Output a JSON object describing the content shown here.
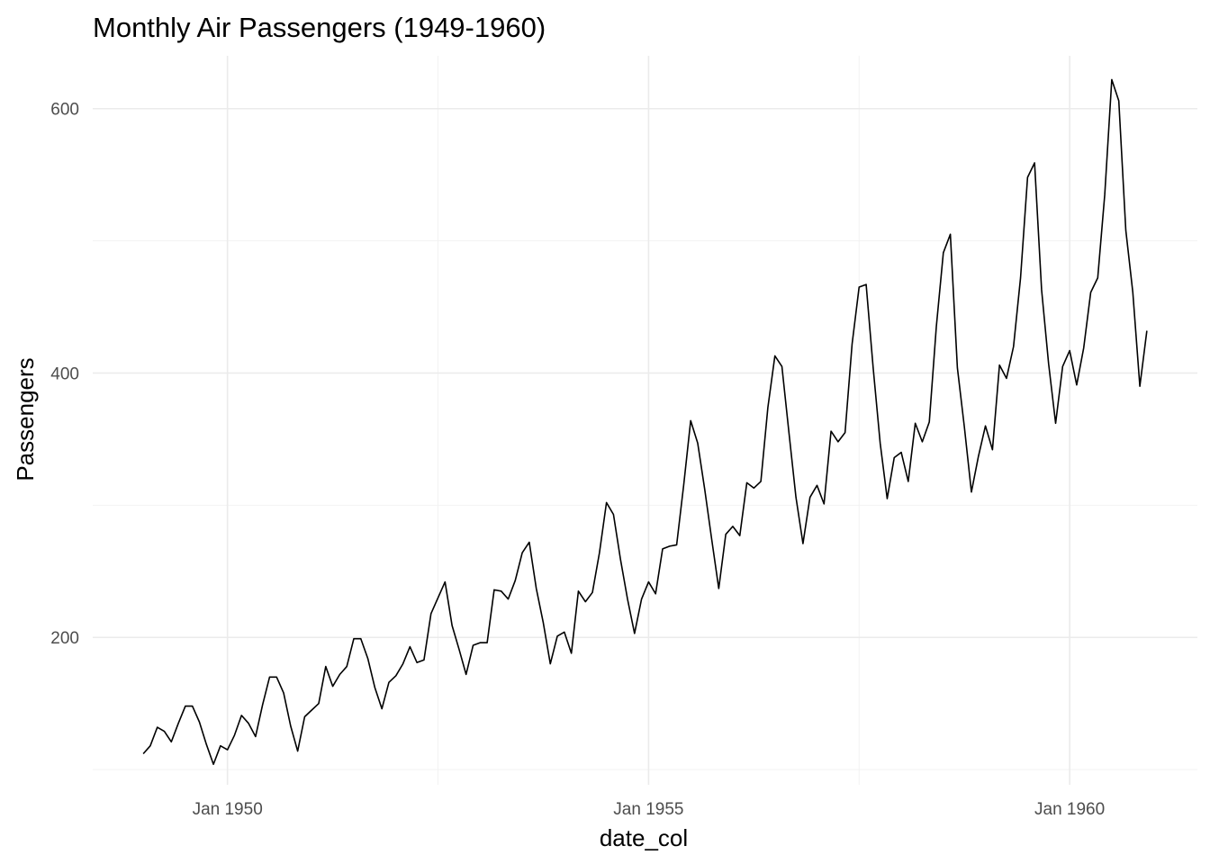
{
  "chart_data": {
    "type": "line",
    "title": "Monthly Air Passengers (1949-1960)",
    "xlabel": "date_col",
    "ylabel": "Passengers",
    "x_start": "1949-01",
    "x_frequency": "monthly",
    "x_ticks": [
      {
        "date": "1950-01",
        "label": "Jan 1950"
      },
      {
        "date": "1955-01",
        "label": "Jan 1955"
      },
      {
        "date": "1960-01",
        "label": "Jan 1960"
      }
    ],
    "y_ticks": [
      200,
      400,
      600
    ],
    "grid": true,
    "legend": "none",
    "line_color": "#000000",
    "series": [
      {
        "values": [
          112,
          118,
          132,
          129,
          121,
          135,
          148,
          148,
          136,
          119,
          104,
          118,
          115,
          126,
          141,
          135,
          125,
          149,
          170,
          170,
          158,
          133,
          114,
          140,
          145,
          150,
          178,
          163,
          172,
          178,
          199,
          199,
          184,
          162,
          146,
          166,
          171,
          180,
          193,
          181,
          183,
          218,
          230,
          242,
          209,
          191,
          172,
          194,
          196,
          196,
          236,
          235,
          229,
          243,
          264,
          272,
          237,
          211,
          180,
          201,
          204,
          188,
          235,
          227,
          234,
          264,
          302,
          293,
          259,
          229,
          203,
          229,
          242,
          233,
          267,
          269,
          270,
          315,
          364,
          347,
          312,
          274,
          237,
          278,
          284,
          277,
          317,
          313,
          318,
          374,
          413,
          405,
          355,
          306,
          271,
          306,
          315,
          301,
          356,
          348,
          355,
          422,
          465,
          467,
          404,
          347,
          305,
          336,
          340,
          318,
          362,
          348,
          363,
          435,
          491,
          505,
          404,
          359,
          310,
          337,
          360,
          342,
          406,
          396,
          420,
          472,
          548,
          559,
          463,
          407,
          362,
          405,
          417,
          391,
          419,
          461,
          472,
          535,
          622,
          606,
          508,
          461,
          390,
          432
        ]
      }
    ]
  }
}
